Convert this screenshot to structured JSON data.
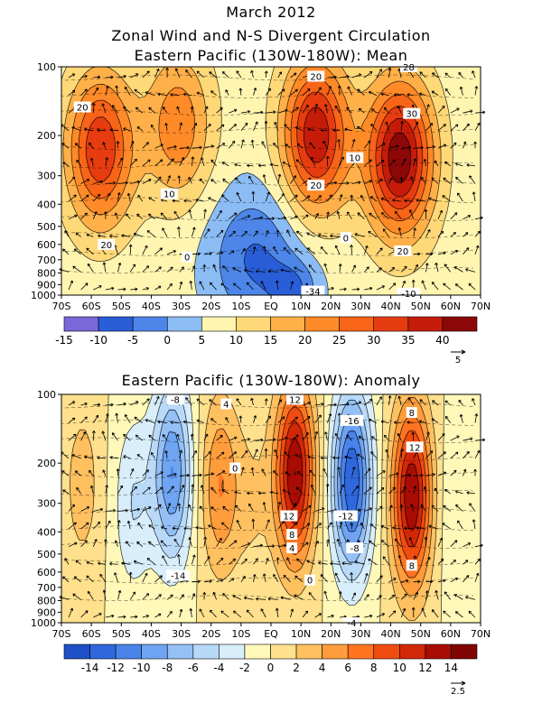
{
  "titles": {
    "main": "March 2012",
    "line2": "Zonal Wind and N-S Divergent Circulation",
    "panel1": "Eastern Pacific (130W-180W): Mean",
    "panel2": "Eastern Pacific (130W-180W): Anomaly"
  },
  "chart_data": [
    {
      "type": "heatmap",
      "title": "Eastern Pacific (130W-180W): Mean",
      "x_ticks": [
        "70S",
        "60S",
        "50S",
        "40S",
        "30S",
        "20S",
        "10S",
        "EQ",
        "10N",
        "20N",
        "30N",
        "40N",
        "50N",
        "60N",
        "70N"
      ],
      "y_ticks": [
        "100",
        "200",
        "300",
        "400",
        "500",
        "600",
        "700",
        "800",
        "900",
        "1000"
      ],
      "y_scale": "log",
      "xlim": [
        "70S",
        "70N"
      ],
      "ylim": [
        1000,
        100
      ],
      "colorbar_labels": [
        "-15",
        "-10",
        "-5",
        "0",
        "5",
        "10",
        "15",
        "20",
        "25",
        "30",
        "35",
        "40"
      ],
      "colorbar_colors": [
        "#7b68d8",
        "#2a5ed8",
        "#4d86e8",
        "#8cbcf4",
        "#fff5b0",
        "#ffd878",
        "#ffb048",
        "#ff8a28",
        "#f86418",
        "#e63c10",
        "#c41c08",
        "#8c0808"
      ],
      "contour_labels": [
        {
          "text": "20",
          "lat": -63,
          "p": 150
        },
        {
          "text": "20",
          "lat": -55,
          "p": 600
        },
        {
          "text": "10",
          "lat": -34,
          "p": 360
        },
        {
          "text": "0",
          "lat": -28,
          "p": 680
        },
        {
          "text": "20",
          "lat": 15,
          "p": 110
        },
        {
          "text": "10",
          "lat": 28,
          "p": 250
        },
        {
          "text": "20",
          "lat": 15,
          "p": 330
        },
        {
          "text": "0",
          "lat": 25,
          "p": 560
        },
        {
          "text": "30",
          "lat": 47,
          "p": 160
        },
        {
          "text": "20",
          "lat": 44,
          "p": 640
        },
        {
          "text": "28",
          "lat": 46,
          "p": 100
        },
        {
          "text": "-34",
          "lat": 14,
          "p": 960
        },
        {
          "text": "-10",
          "lat": 46,
          "p": 980
        }
      ],
      "vector_scale_label": "5",
      "jets": [
        {
          "lat": -57,
          "p": 230,
          "max": 30
        },
        {
          "lat": 15,
          "p": 200,
          "max": 35
        },
        {
          "lat": 43,
          "p": 250,
          "max": 40
        },
        {
          "lat": -31,
          "p": 180,
          "max": 18
        }
      ]
    },
    {
      "type": "heatmap",
      "title": "Eastern Pacific (130W-180W): Anomaly",
      "x_ticks": [
        "70S",
        "60S",
        "50S",
        "40S",
        "30S",
        "20S",
        "10S",
        "EQ",
        "10N",
        "20N",
        "30N",
        "40N",
        "50N",
        "60N",
        "70N"
      ],
      "y_ticks": [
        "100",
        "200",
        "300",
        "400",
        "500",
        "600",
        "700",
        "800",
        "900",
        "1000"
      ],
      "y_scale": "log",
      "xlim": [
        "70S",
        "70N"
      ],
      "ylim": [
        1000,
        100
      ],
      "colorbar_labels": [
        "-14",
        "-12",
        "-10",
        "-8",
        "-6",
        "-4",
        "-2",
        "0",
        "2",
        "4",
        "6",
        "8",
        "10",
        "12",
        "14"
      ],
      "colorbar_colors": [
        "#1e50c8",
        "#2f68dc",
        "#4a84ea",
        "#6ea4f2",
        "#94c0f6",
        "#b8daf8",
        "#d8eefa",
        "#fff8b8",
        "#ffe08c",
        "#ffc060",
        "#ff9c3c",
        "#ff7420",
        "#f04c10",
        "#d22808",
        "#a80c04",
        "#800404"
      ],
      "contour_labels": [
        {
          "text": "-8",
          "lat": -32,
          "p": 105
        },
        {
          "text": "4",
          "lat": -15,
          "p": 110
        },
        {
          "text": "12",
          "lat": 8,
          "p": 105
        },
        {
          "text": "-16",
          "lat": 27,
          "p": 130
        },
        {
          "text": "8",
          "lat": 47,
          "p": 120
        },
        {
          "text": "12",
          "lat": 48,
          "p": 170
        },
        {
          "text": "0",
          "lat": -12,
          "p": 210
        },
        {
          "text": "12",
          "lat": 6,
          "p": 340
        },
        {
          "text": "8",
          "lat": 7,
          "p": 410
        },
        {
          "text": "4",
          "lat": 7,
          "p": 470
        },
        {
          "text": "-12",
          "lat": 25,
          "p": 340
        },
        {
          "text": "-8",
          "lat": 28,
          "p": 470
        },
        {
          "text": "8",
          "lat": 47,
          "p": 560
        },
        {
          "text": "0",
          "lat": 13,
          "p": 650
        },
        {
          "text": "-14",
          "lat": -31,
          "p": 620
        },
        {
          "text": "-4",
          "lat": 27,
          "p": 1000
        }
      ],
      "vector_scale_label": "2.5",
      "centers": [
        {
          "lat": -63,
          "p": 250,
          "amp": 3
        },
        {
          "lat": -46,
          "p": 300,
          "amp": -4
        },
        {
          "lat": -33,
          "p": 220,
          "amp": -10
        },
        {
          "lat": -17,
          "p": 250,
          "amp": 6
        },
        {
          "lat": -6,
          "p": 300,
          "amp": 2
        },
        {
          "lat": 8,
          "p": 220,
          "amp": 14
        },
        {
          "lat": 27,
          "p": 240,
          "amp": -14
        },
        {
          "lat": 47,
          "p": 280,
          "amp": 14
        },
        {
          "lat": 62,
          "p": 320,
          "amp": -2
        }
      ]
    }
  ]
}
